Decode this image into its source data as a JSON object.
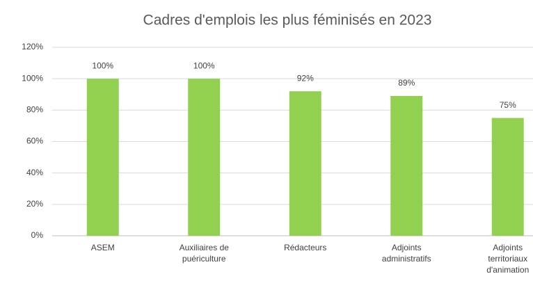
{
  "chart_data": {
    "type": "bar",
    "title": "Cadres d'emplois les plus féminisés en 2023",
    "categories": [
      "ASEM",
      "Auxiliaires de puériculture",
      "Rédacteurs",
      "Adjoints administratifs",
      "Adjoints territoriaux d'animation"
    ],
    "values": [
      100,
      100,
      92,
      89,
      75
    ],
    "value_labels": [
      "100%",
      "100%",
      "92%",
      "89%",
      "75%"
    ],
    "color": "#92d050",
    "ylim": [
      0,
      120
    ],
    "yticks": [
      {
        "value": 0,
        "label": "0%"
      },
      {
        "value": 20,
        "label": "20%"
      },
      {
        "value": 40,
        "label": "40%"
      },
      {
        "value": 60,
        "label": "60%"
      },
      {
        "value": 80,
        "label": "80%"
      },
      {
        "value": 100,
        "label": "100%"
      },
      {
        "value": 120,
        "label": "120%"
      }
    ],
    "grid": true
  }
}
